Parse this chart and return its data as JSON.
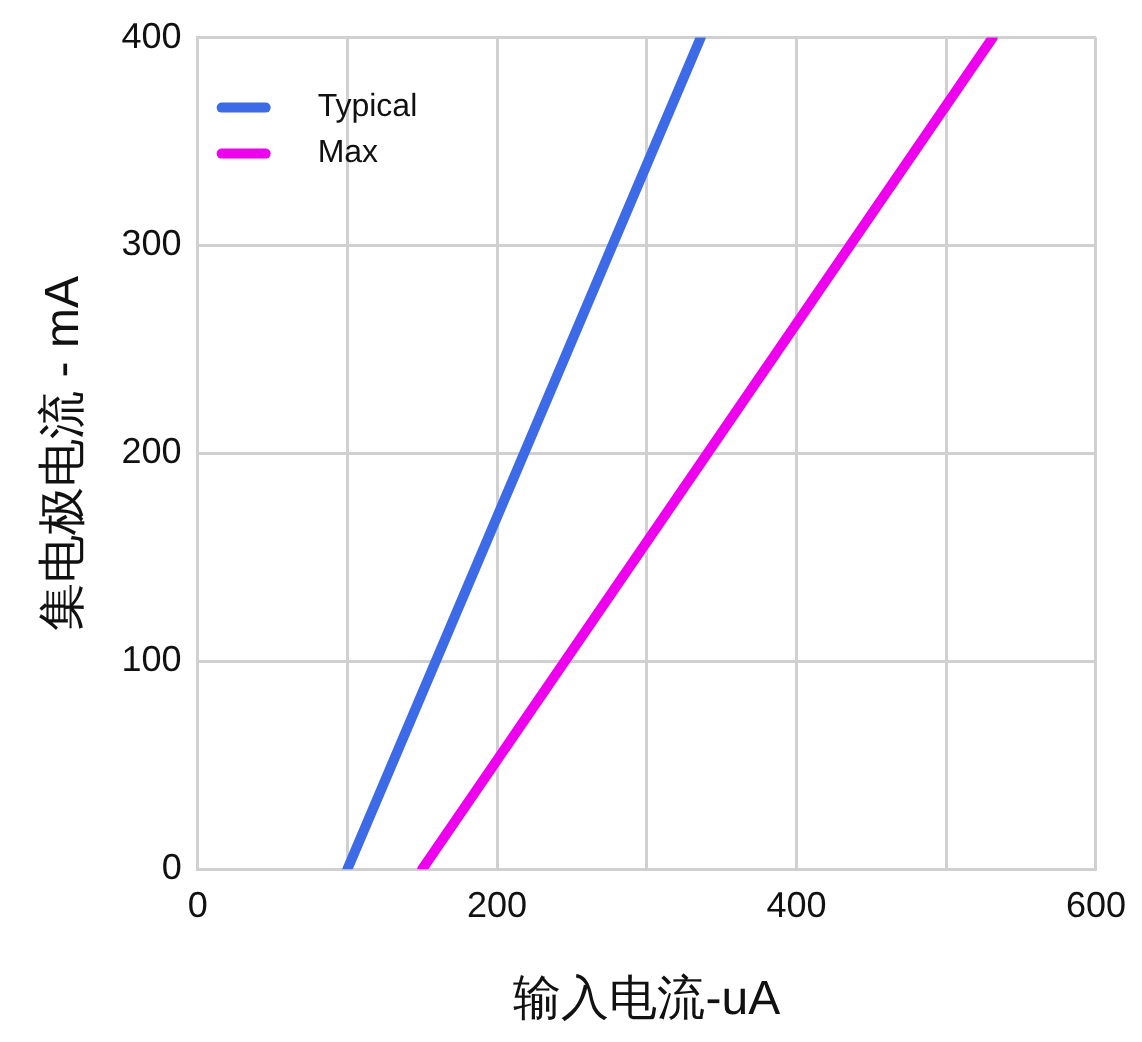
{
  "chart_data": {
    "type": "line",
    "xlabel": "输入电流-uA",
    "ylabel": "集电极电流 - mA",
    "xlim": [
      0,
      600
    ],
    "xticks": [
      0,
      {
        "value": 100,
        "label": null
      },
      200,
      {
        "value": 300,
        "label": null
      },
      400,
      {
        "value": 500,
        "label": null
      },
      600
    ],
    "ylim": [
      0,
      400
    ],
    "yticks": [
      0,
      100,
      200,
      300,
      400
    ],
    "grid": true,
    "legend": "top left",
    "marker": "none",
    "line_style": "solid",
    "series": [
      {
        "name": "Typical",
        "color": "#3d6ae6",
        "x": [
          100,
          336
        ],
        "values": [
          0,
          400
        ]
      },
      {
        "name": "Max",
        "color": "#ee00ee",
        "x": [
          150,
          531
        ],
        "values": [
          0,
          400
        ]
      }
    ]
  }
}
